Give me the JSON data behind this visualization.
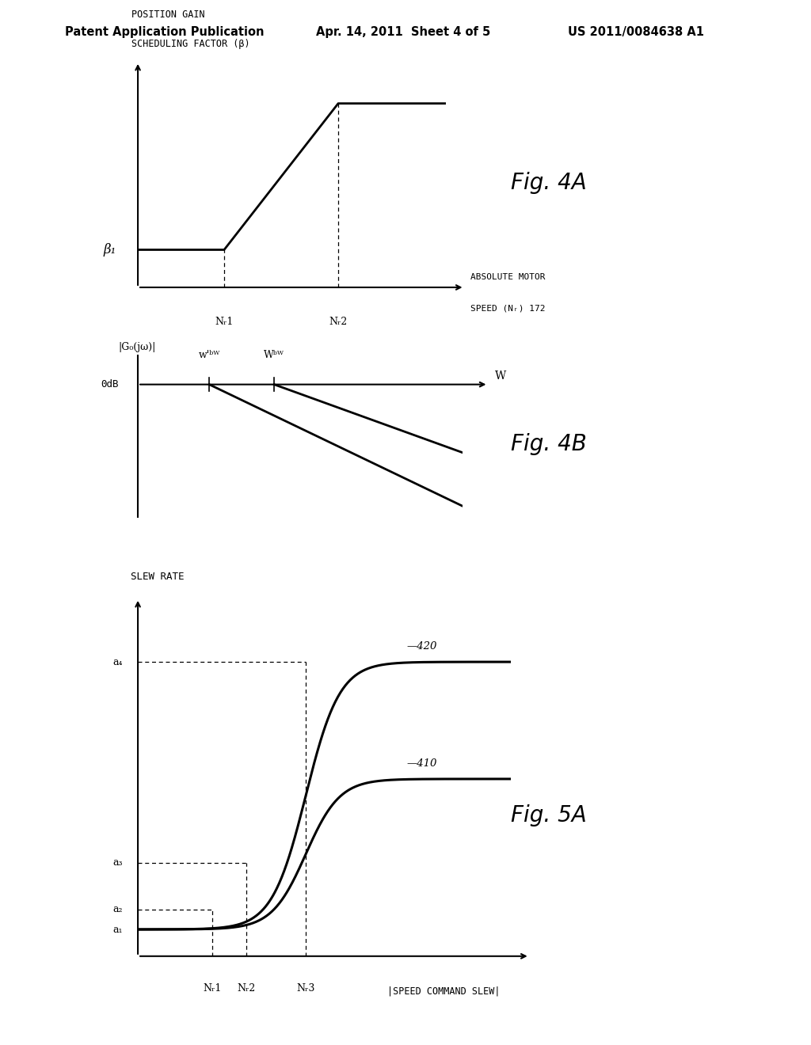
{
  "bg_color": "#ffffff",
  "header_left": "Patent Application Publication",
  "header_center": "Apr. 14, 2011  Sheet 4 of 5",
  "header_right": "US 2011/0084638 A1",
  "fig4a": {
    "title_line1": "POSITION GAIN",
    "title_line2": "SCHEDULING FACTOR (β)",
    "xlabel_line1": "ABSOLUTE MOTOR",
    "xlabel_line2": "SPEED (Nᵣ) 172",
    "ylabel_label": "β₁",
    "x_tick1_label": "Nᵣ1",
    "x_tick2_label": "Nᵣ2",
    "fig_label": "Fig. 4A"
  },
  "fig4b": {
    "ylabel_label": "|G₀(jω)|",
    "y0db_label": "0dB",
    "xlabel_w": "W",
    "wbw_prime_label": "w'ᵇᵂ",
    "wbw_label": "Wᵇᵂ",
    "fig_label": "Fig. 4B"
  },
  "fig5a": {
    "title": "SLEW RATE",
    "xlabel": "|SPEED COMMAND SLEW|",
    "curve420_label": "—420",
    "curve410_label": "—410",
    "y_a4_label": "a₄",
    "y_a3_label": "a₃",
    "y_a2_label": "a₂",
    "y_a1_label": "a₁",
    "x_nr1_label": "Nᵣ1",
    "x_nr2_label": "Nᵣ2",
    "x_nr3_label": "Nᵣ3",
    "fig_label": "Fig. 5A"
  }
}
